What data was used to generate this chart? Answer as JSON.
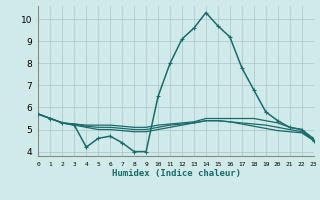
{
  "xlabel": "Humidex (Indice chaleur)",
  "xlim": [
    0,
    23
  ],
  "ylim": [
    3.8,
    10.6
  ],
  "yticks": [
    4,
    5,
    6,
    7,
    8,
    9,
    10
  ],
  "xtick_labels": [
    "0",
    "1",
    "2",
    "3",
    "4",
    "5",
    "6",
    "7",
    "8",
    "9",
    "10",
    "11",
    "12",
    "13",
    "14",
    "15",
    "16",
    "17",
    "18",
    "19",
    "20",
    "21",
    "22",
    "23"
  ],
  "bg_color": "#d0eaea",
  "grid_color": "#b0cccc",
  "line_color": "#1a6b6b",
  "curves": [
    {
      "x": [
        0,
        1,
        2,
        3,
        4,
        5,
        6,
        7,
        8,
        9,
        10,
        11,
        12,
        13,
        14,
        15,
        16,
        17,
        18,
        19,
        20,
        21,
        22,
        23
      ],
      "y": [
        5.7,
        5.5,
        5.3,
        5.2,
        4.2,
        4.6,
        4.7,
        4.4,
        4.0,
        4.0,
        6.5,
        8.0,
        9.1,
        9.6,
        10.3,
        9.7,
        9.2,
        7.8,
        6.8,
        5.8,
        5.4,
        5.1,
        5.0,
        4.5
      ],
      "marker": true,
      "lw": 1.1
    },
    {
      "x": [
        0,
        1,
        2,
        3,
        4,
        5,
        6,
        7,
        8,
        9,
        10,
        11,
        12,
        13,
        14,
        15,
        16,
        17,
        18,
        19,
        20,
        21,
        22,
        23
      ],
      "y": [
        5.7,
        5.5,
        5.3,
        5.25,
        5.2,
        5.2,
        5.2,
        5.15,
        5.1,
        5.1,
        5.2,
        5.25,
        5.3,
        5.35,
        5.5,
        5.5,
        5.5,
        5.5,
        5.5,
        5.4,
        5.3,
        5.1,
        5.0,
        4.6
      ],
      "marker": false,
      "lw": 0.9
    },
    {
      "x": [
        0,
        1,
        2,
        3,
        4,
        5,
        6,
        7,
        8,
        9,
        10,
        11,
        12,
        13,
        14,
        15,
        16,
        17,
        18,
        19,
        20,
        21,
        22,
        23
      ],
      "y": [
        5.7,
        5.5,
        5.3,
        5.25,
        5.15,
        5.1,
        5.1,
        5.05,
        5.0,
        5.0,
        5.1,
        5.2,
        5.25,
        5.3,
        5.4,
        5.4,
        5.35,
        5.3,
        5.25,
        5.2,
        5.1,
        5.0,
        4.9,
        4.55
      ],
      "marker": false,
      "lw": 0.9
    },
    {
      "x": [
        0,
        1,
        2,
        3,
        4,
        5,
        6,
        7,
        8,
        9,
        10,
        11,
        12,
        13,
        14,
        15,
        16,
        17,
        18,
        19,
        20,
        21,
        22,
        23
      ],
      "y": [
        5.7,
        5.5,
        5.3,
        5.2,
        5.1,
        5.0,
        5.0,
        4.95,
        4.9,
        4.9,
        5.0,
        5.1,
        5.2,
        5.3,
        5.4,
        5.4,
        5.35,
        5.25,
        5.15,
        5.05,
        4.95,
        4.9,
        4.85,
        4.5
      ],
      "marker": false,
      "lw": 0.9
    }
  ]
}
